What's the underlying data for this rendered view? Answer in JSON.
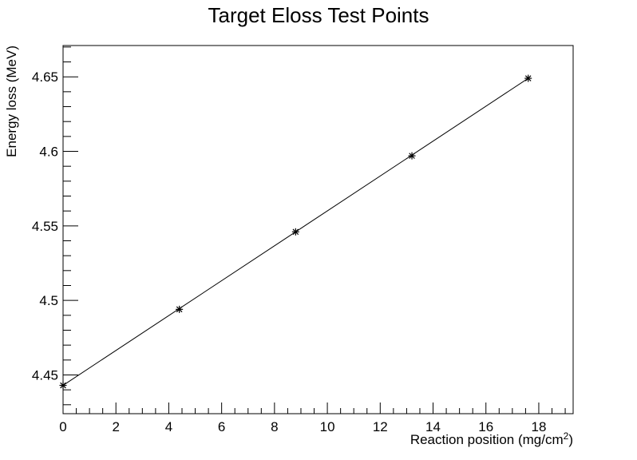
{
  "chart_data": {
    "type": "scatter",
    "title": "Target Eloss Test Points",
    "xlabel": "Reaction position (mg/cm",
    "xlabel_sup": "2",
    "xlabel_end": ")",
    "ylabel": "Energy loss (MeV)",
    "xlim": [
      0,
      19.3
    ],
    "ylim": [
      4.424,
      4.671
    ],
    "x_ticks": [
      0,
      2,
      4,
      6,
      8,
      10,
      12,
      14,
      16,
      18
    ],
    "x_tick_labels": [
      "0",
      "2",
      "4",
      "6",
      "8",
      "10",
      "12",
      "14",
      "16",
      "18"
    ],
    "y_ticks": [
      4.45,
      4.5,
      4.55,
      4.6,
      4.65
    ],
    "y_tick_labels": [
      "4.45",
      "4.5",
      "4.55",
      "4.6",
      "4.65"
    ],
    "grid": false,
    "marker": "star",
    "line_color": "#000000",
    "series": [
      {
        "x": [
          0,
          4.4,
          8.8,
          13.2,
          17.6
        ],
        "values": [
          4.443,
          4.494,
          4.546,
          4.597,
          4.649
        ]
      }
    ],
    "fit_line": {
      "x": [
        0,
        17.6
      ],
      "y": [
        4.443,
        4.649
      ]
    }
  }
}
